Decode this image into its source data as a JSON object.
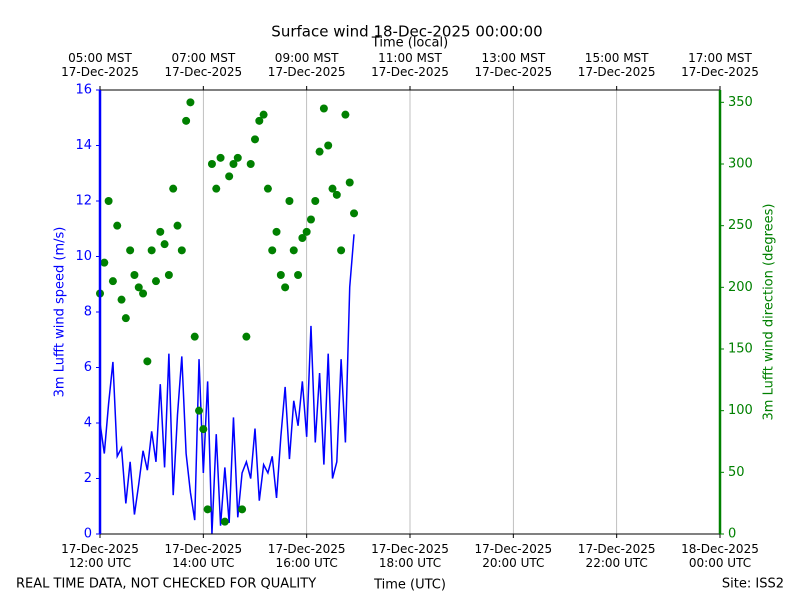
{
  "chart_data": {
    "type": "line",
    "title": "Surface wind 18-Dec-2025 00:00:00",
    "x_label": "Time (UTC)",
    "x2_label": "Time (local)",
    "y_label": "3m Lufft wind speed (m/s)",
    "y2_label": "3m Lufft wind direction (degrees)",
    "footnote_left": "REAL TIME DATA, NOT CHECKED FOR QUALITY",
    "footnote_right": "Site: ISS2",
    "xlim": [
      720,
      1440
    ],
    "xticks": [
      {
        "value": 720,
        "label": "17-Dec-2025\n12:00 UTC"
      },
      {
        "value": 840,
        "label": "17-Dec-2025\n14:00 UTC"
      },
      {
        "value": 960,
        "label": "17-Dec-2025\n16:00 UTC"
      },
      {
        "value": 1080,
        "label": "17-Dec-2025\n18:00 UTC"
      },
      {
        "value": 1200,
        "label": "17-Dec-2025\n20:00 UTC"
      },
      {
        "value": 1320,
        "label": "17-Dec-2025\n22:00 UTC"
      },
      {
        "value": 1440,
        "label": "18-Dec-2025\n00:00 UTC"
      }
    ],
    "x2ticks": [
      {
        "value": 720,
        "label": "05:00 MST\n17-Dec-2025"
      },
      {
        "value": 840,
        "label": "07:00 MST\n17-Dec-2025"
      },
      {
        "value": 960,
        "label": "09:00 MST\n17-Dec-2025"
      },
      {
        "value": 1080,
        "label": "11:00 MST\n17-Dec-2025"
      },
      {
        "value": 1200,
        "label": "13:00 MST\n17-Dec-2025"
      },
      {
        "value": 1320,
        "label": "15:00 MST\n17-Dec-2025"
      },
      {
        "value": 1440,
        "label": "17:00 MST\n17-Dec-2025"
      }
    ],
    "ylim": [
      0,
      16
    ],
    "yticks": [
      0,
      2,
      4,
      6,
      8,
      10,
      12,
      14,
      16
    ],
    "y2lim": [
      0,
      360
    ],
    "y2ticks": [
      0,
      50,
      100,
      150,
      200,
      250,
      300,
      350
    ],
    "grid": true,
    "x": [
      720,
      725,
      730,
      735,
      740,
      745,
      750,
      755,
      760,
      765,
      770,
      775,
      780,
      785,
      790,
      795,
      800,
      805,
      810,
      815,
      820,
      825,
      830,
      835,
      840,
      845,
      850,
      855,
      860,
      865,
      870,
      875,
      880,
      885,
      890,
      895,
      900,
      905,
      910,
      915,
      920,
      925,
      930,
      935,
      940,
      945,
      950,
      955,
      960,
      965,
      970,
      975,
      980,
      985,
      990,
      995,
      1000,
      1005,
      1010,
      1015
    ],
    "series": [
      {
        "name": "3m Lufft wind speed",
        "type": "line",
        "axis": "y",
        "color": "#0000ff",
        "values": [
          4.0,
          2.9,
          4.7,
          6.2,
          2.8,
          3.1,
          1.1,
          2.6,
          0.7,
          1.8,
          3.0,
          2.3,
          3.7,
          2.6,
          5.4,
          2.4,
          6.5,
          1.4,
          4.3,
          6.4,
          2.9,
          1.5,
          0.5,
          6.3,
          2.2,
          5.5,
          0.0,
          3.6,
          0.3,
          2.4,
          0.4,
          4.2,
          0.6,
          2.2,
          2.6,
          2.0,
          3.8,
          1.2,
          2.5,
          2.2,
          2.8,
          1.3,
          3.5,
          5.3,
          2.7,
          4.8,
          3.9,
          5.5,
          3.5,
          7.5,
          3.3,
          5.8,
          2.5,
          6.5,
          2.0,
          2.6,
          6.3,
          3.3,
          8.9,
          10.8
        ]
      },
      {
        "name": "3m Lufft wind direction",
        "type": "scatter",
        "axis": "y2",
        "color": "#008000",
        "values": [
          195,
          220,
          270,
          205,
          250,
          190,
          175,
          230,
          210,
          200,
          195,
          140,
          230,
          205,
          245,
          235,
          210,
          280,
          250,
          230,
          335,
          350,
          160,
          100,
          85,
          20,
          300,
          280,
          305,
          10,
          290,
          300,
          305,
          20,
          160,
          300,
          320,
          335,
          340,
          280,
          230,
          245,
          210,
          200,
          270,
          230,
          210,
          240,
          245,
          255,
          270,
          310,
          345,
          315,
          280,
          275,
          230,
          340,
          285,
          260
        ]
      }
    ]
  }
}
